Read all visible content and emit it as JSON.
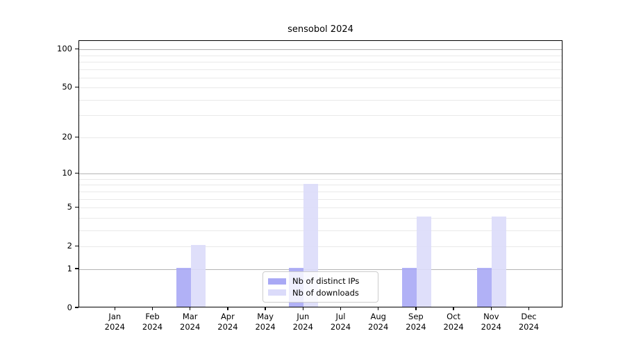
{
  "title": "sensobol 2024",
  "legend": {
    "items": [
      {
        "label": "Nb of distinct IPs",
        "color": "#a9a9f5"
      },
      {
        "label": "Nb of downloads",
        "color": "#dbdbfa"
      }
    ]
  },
  "axes": {
    "y_tick_labels": [
      "0",
      "1",
      "2",
      "5",
      "10",
      "20",
      "50",
      "100"
    ],
    "x_year": "2024"
  },
  "colors": {
    "grid_major": "#b3b3b3",
    "grid_minor": "#e9e9e9",
    "axis": "#000000",
    "background": "#ffffff"
  },
  "chart_data": {
    "type": "bar",
    "title": "sensobol 2024",
    "categories": [
      "Jan",
      "Feb",
      "Mar",
      "Apr",
      "May",
      "Jun",
      "Jul",
      "Aug",
      "Sep",
      "Oct",
      "Nov",
      "Dec"
    ],
    "category_year": "2024",
    "series": [
      {
        "name": "Nb of distinct IPs",
        "color": "#a9a9f5",
        "values": [
          0,
          0,
          1,
          0,
          0,
          1,
          0,
          0,
          1,
          0,
          1,
          0
        ]
      },
      {
        "name": "Nb of downloads",
        "color": "#dbdbfa",
        "values": [
          0,
          0,
          2,
          0,
          0,
          8,
          0,
          0,
          4,
          0,
          4,
          0
        ]
      }
    ],
    "xlabel": "",
    "ylabel": "",
    "yscale": "log1p",
    "ylim": [
      0,
      116
    ],
    "yticks": [
      0,
      1,
      2,
      5,
      10,
      20,
      50,
      100
    ],
    "grid_major_levels": [
      1,
      10,
      100
    ],
    "grid_minor_levels": [
      2,
      3,
      4,
      5,
      6,
      7,
      8,
      9,
      20,
      30,
      40,
      50,
      60,
      70,
      80,
      90
    ],
    "grid": true,
    "legend_position": "lower center inside plot"
  }
}
